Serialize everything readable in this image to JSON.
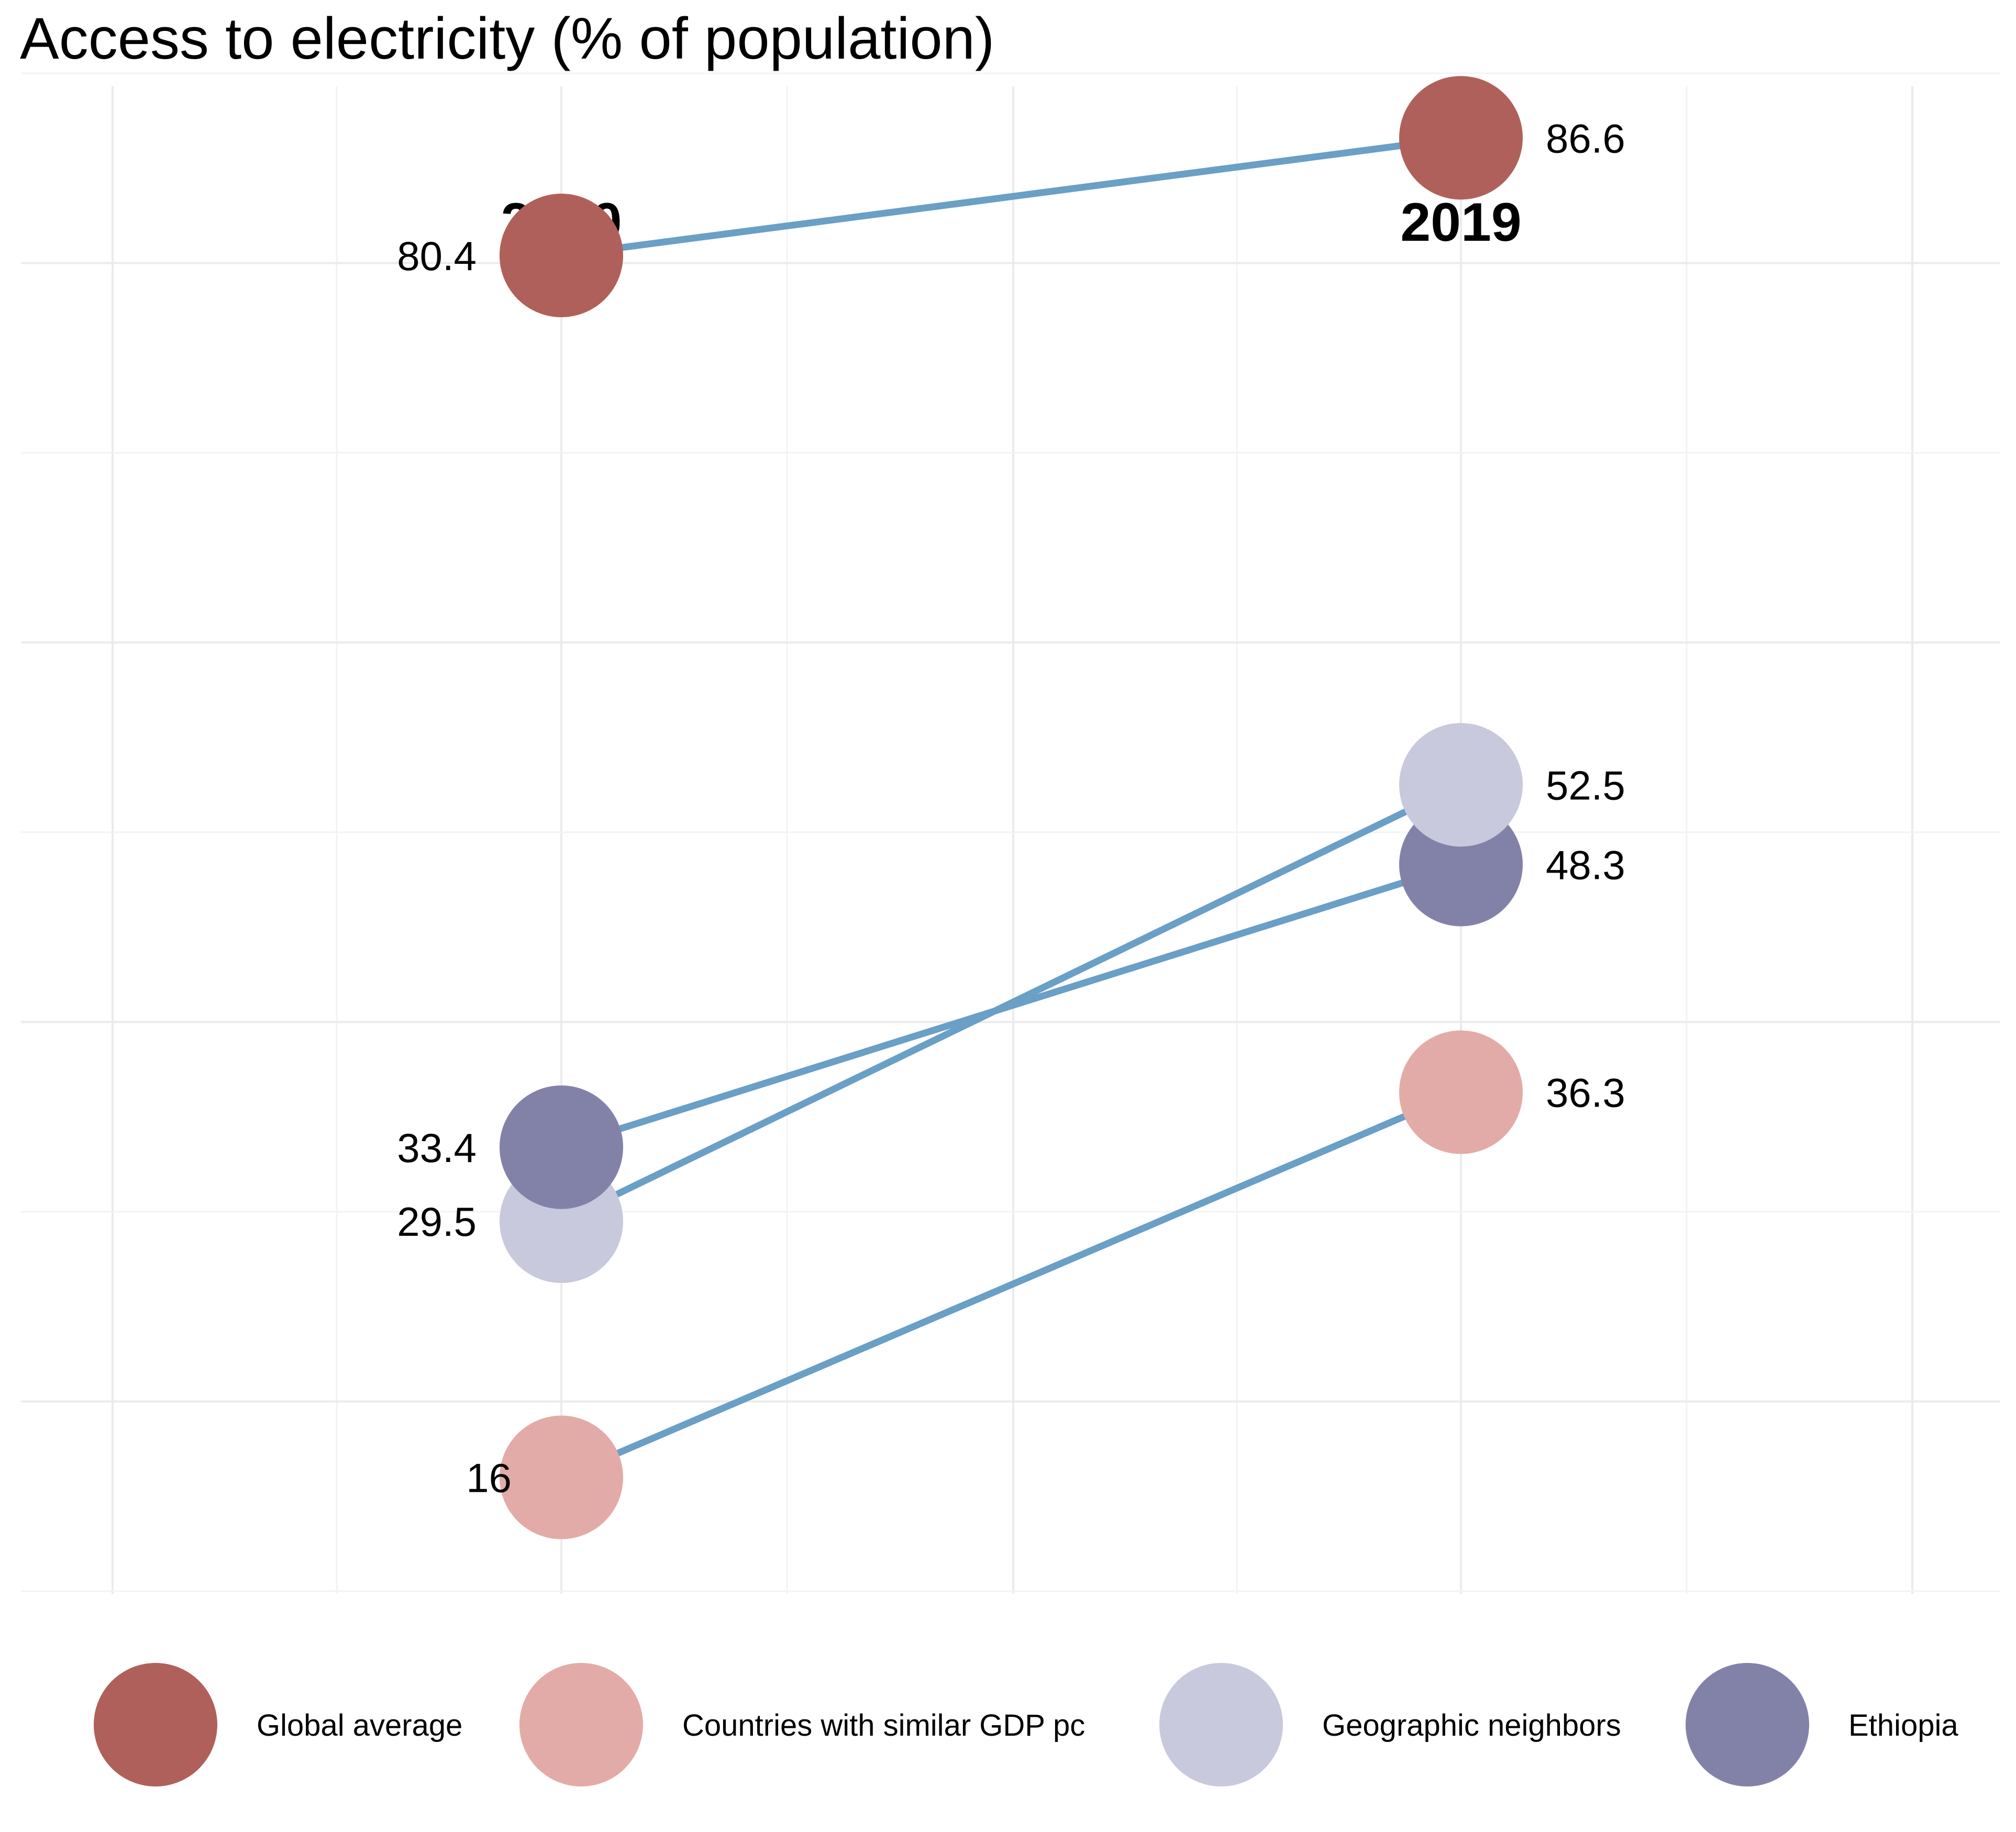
{
  "title": "Access to electricity (% of population)",
  "chart_data": {
    "type": "slope",
    "title": "Access to electricity (% of population)",
    "x": [
      "2010",
      "2019"
    ],
    "y_range": [
      10,
      90
    ],
    "grid": true,
    "legend_position": "bottom",
    "line_color": "#6a9fc6",
    "series": [
      {
        "name": "Global average",
        "color": "#b0605a",
        "values": [
          80.4,
          86.6
        ],
        "labels": [
          "80.4",
          "86.6"
        ]
      },
      {
        "name": "Countries with similar GDP pc",
        "color": "#e3aba7",
        "values": [
          16,
          36.3
        ],
        "labels": [
          "16",
          "36.3"
        ]
      },
      {
        "name": "Geographic neighbors",
        "color": "#c8c9dc",
        "values": [
          29.5,
          52.5
        ],
        "labels": [
          "29.5",
          "52.5"
        ]
      },
      {
        "name": "Ethiopia",
        "color": "#8282a9",
        "values": [
          33.4,
          48.3
        ],
        "labels": [
          "33.4",
          "48.3"
        ]
      }
    ]
  }
}
